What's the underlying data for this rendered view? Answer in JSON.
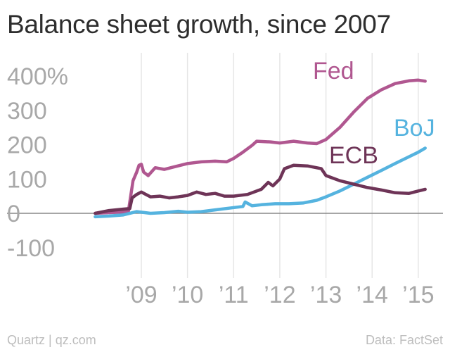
{
  "title": "Balance sheet growth, since 2007",
  "footer": {
    "source_left": "Quartz | qz.com",
    "source_right": "Data: FactSet"
  },
  "colors": {
    "Fed": "#b05790",
    "BoJ": "#55b3df",
    "ECB": "#6e3457",
    "grid": "#e6e6e6",
    "zero_line": "#888888",
    "text": "#a8a8a8"
  },
  "chart_data": {
    "type": "line",
    "title": "Balance sheet growth, since 2007",
    "xlabel": "",
    "ylabel": "",
    "xlim": [
      2007.75,
      2015.33
    ],
    "ylim": [
      -150,
      420
    ],
    "y_ticks": [
      {
        "value": 400,
        "label": "400%"
      },
      {
        "value": 300,
        "label": "300"
      },
      {
        "value": 200,
        "label": "200"
      },
      {
        "value": 100,
        "label": "100"
      },
      {
        "value": 0,
        "label": "0"
      },
      {
        "value": -100,
        "label": "-100"
      }
    ],
    "x_ticks": [
      {
        "value": 2009,
        "label": "’09"
      },
      {
        "value": 2010,
        "label": "’10"
      },
      {
        "value": 2011,
        "label": "’11"
      },
      {
        "value": 2012,
        "label": "’12"
      },
      {
        "value": 2013,
        "label": "’13"
      },
      {
        "value": 2014,
        "label": "’14"
      },
      {
        "value": 2015,
        "label": "’15"
      }
    ],
    "grid": "vertical",
    "series": [
      {
        "name": "Fed",
        "x": [
          2008.0,
          2008.3,
          2008.6,
          2008.72,
          2008.78,
          2008.82,
          2008.9,
          2008.95,
          2009.0,
          2009.05,
          2009.15,
          2009.3,
          2009.5,
          2009.7,
          2010.0,
          2010.3,
          2010.6,
          2010.85,
          2011.0,
          2011.2,
          2011.4,
          2011.5,
          2011.8,
          2012.0,
          2012.3,
          2012.6,
          2012.8,
          2013.0,
          2013.3,
          2013.6,
          2013.9,
          2014.2,
          2014.5,
          2014.8,
          2015.0,
          2015.15
        ],
        "y": [
          0,
          2,
          4,
          6,
          60,
          95,
          120,
          140,
          143,
          120,
          110,
          133,
          128,
          135,
          145,
          150,
          152,
          150,
          160,
          178,
          198,
          210,
          208,
          205,
          210,
          205,
          203,
          215,
          250,
          295,
          335,
          360,
          378,
          386,
          388,
          385
        ]
      },
      {
        "name": "BoJ",
        "x": [
          2008.0,
          2008.3,
          2008.6,
          2008.9,
          2009.2,
          2009.5,
          2009.8,
          2010.0,
          2010.3,
          2010.6,
          2010.9,
          2011.2,
          2011.25,
          2011.4,
          2011.6,
          2011.9,
          2012.2,
          2012.5,
          2012.8,
          2013.0,
          2013.3,
          2013.6,
          2013.9,
          2014.2,
          2014.5,
          2014.8,
          2015.0,
          2015.15
        ],
        "y": [
          -10,
          -8,
          -5,
          5,
          0,
          2,
          6,
          3,
          5,
          10,
          15,
          20,
          33,
          22,
          25,
          28,
          28,
          30,
          38,
          48,
          65,
          85,
          105,
          125,
          145,
          165,
          178,
          190
        ]
      },
      {
        "name": "ECB",
        "x": [
          2008.0,
          2008.3,
          2008.6,
          2008.75,
          2008.8,
          2008.9,
          2009.0,
          2009.1,
          2009.2,
          2009.4,
          2009.6,
          2009.8,
          2010.0,
          2010.2,
          2010.4,
          2010.6,
          2010.8,
          2011.0,
          2011.3,
          2011.6,
          2011.75,
          2011.85,
          2012.0,
          2012.1,
          2012.3,
          2012.6,
          2012.9,
          2013.0,
          2013.3,
          2013.6,
          2013.9,
          2014.2,
          2014.5,
          2014.8,
          2015.0,
          2015.15
        ],
        "y": [
          0,
          8,
          12,
          14,
          45,
          55,
          62,
          55,
          48,
          50,
          45,
          48,
          52,
          62,
          55,
          58,
          50,
          50,
          55,
          70,
          90,
          80,
          100,
          130,
          140,
          138,
          130,
          110,
          95,
          85,
          75,
          68,
          60,
          58,
          65,
          70
        ]
      }
    ],
    "annotations": [
      {
        "text": "Fed",
        "series": "Fed"
      },
      {
        "text": "BoJ",
        "series": "BoJ"
      },
      {
        "text": "ECB",
        "series": "ECB"
      }
    ]
  }
}
